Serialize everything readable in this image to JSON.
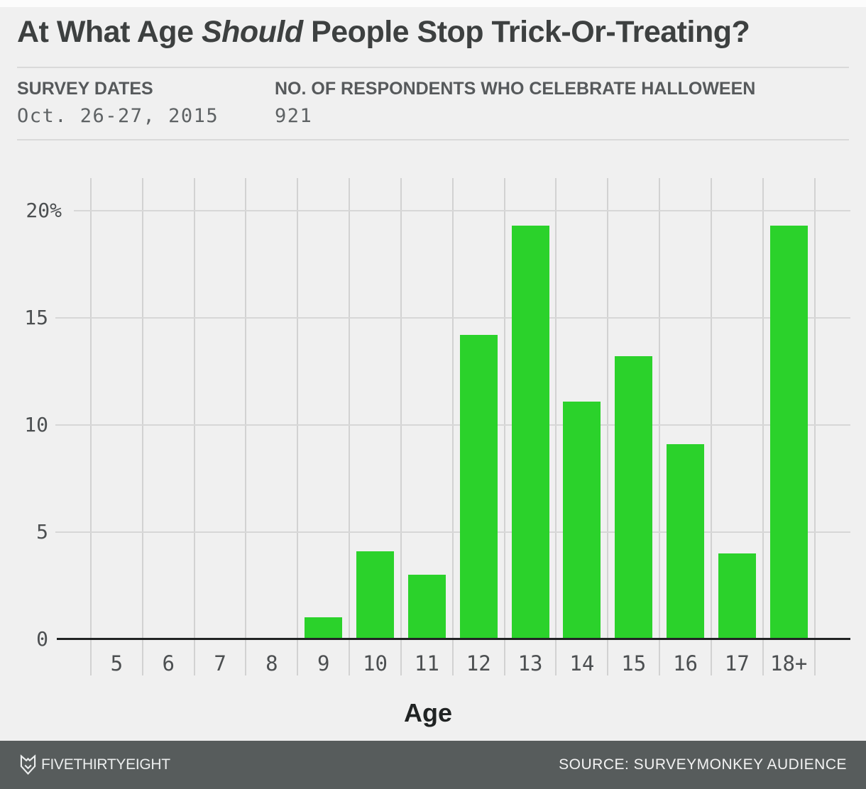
{
  "page": {
    "background_color": "#f0f0f0"
  },
  "title": {
    "prefix": "At What Age ",
    "emphasis": "Should",
    "suffix": " People Stop Trick-Or-Treating?"
  },
  "meta": {
    "survey_dates_label": "SURVEY DATES",
    "survey_dates_value": "Oct. 26-27, 2015",
    "respondents_label": "NO. OF RESPONDENTS WHO CELEBRATE HALLOWEEN",
    "respondents_value": "921"
  },
  "chart_data": {
    "type": "bar",
    "title": "At What Age Should People Stop Trick-Or-Treating?",
    "categories": [
      "5",
      "6",
      "7",
      "8",
      "9",
      "10",
      "11",
      "12",
      "13",
      "14",
      "15",
      "16",
      "17",
      "18+"
    ],
    "values": [
      0,
      0,
      0,
      0,
      1,
      4.1,
      3,
      14.2,
      19.3,
      11.1,
      13.2,
      9.1,
      4,
      19.3
    ],
    "xlabel": "Age",
    "ylabel": "",
    "ylim": [
      0,
      21
    ],
    "yticks": [
      {
        "value": 0,
        "label": "0"
      },
      {
        "value": 5,
        "label": "5"
      },
      {
        "value": 10,
        "label": "10"
      },
      {
        "value": 15,
        "label": "15"
      },
      {
        "value": 20,
        "label": "20%"
      }
    ],
    "grid": true,
    "legend": "none",
    "bar_color": "#2bd22b",
    "gridline_color": "#d4d4d4",
    "axis_color": "#212424"
  },
  "footer": {
    "brand": "FIVETHIRTYEIGHT",
    "source": "SOURCE: SURVEYMONKEY AUDIENCE",
    "background_color": "#575c5c",
    "logo": "fivethirtyeight-fox"
  }
}
